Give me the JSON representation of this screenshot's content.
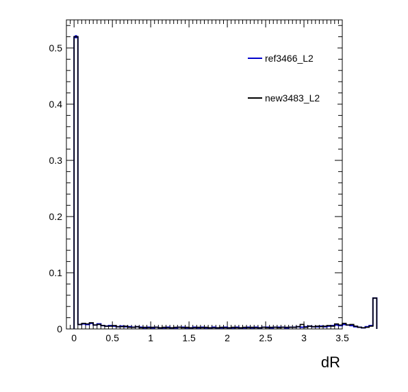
{
  "chart_data": {
    "type": "histogram-step",
    "xlabel": "dR",
    "ylabel": "",
    "xlim": [
      -0.1,
      3.5
    ],
    "ylim": [
      0,
      0.55
    ],
    "bin_width": 0.05,
    "x_ticks": [
      "0",
      "0.5",
      "1",
      "1.5",
      "2",
      "2.5",
      "3",
      "3.5"
    ],
    "y_ticks": [
      "0",
      "0.1",
      "0.2",
      "0.3",
      "0.4",
      "0.5"
    ],
    "grid": false,
    "legend_position": "top-right",
    "series": [
      {
        "name": "ref3466_L2",
        "color": "#0000cc",
        "first_bin_marker": true,
        "values": [
          0.52,
          0.008,
          0.009,
          0.008,
          0.01,
          0.007,
          0.009,
          0.006,
          0.005,
          0.006,
          0.005,
          0.004,
          0.005,
          0.004,
          0.004,
          0.003,
          0.004,
          0.003,
          0.002,
          0.003,
          0.002,
          0.003,
          0.002,
          0.002,
          0.003,
          0.002,
          0.002,
          0.003,
          0.003,
          0.002,
          0.002,
          0.003,
          0.002,
          0.003,
          0.002,
          0.002,
          0.003,
          0.002,
          0.002,
          0.003,
          0.002,
          0.002,
          0.003,
          0.002,
          0.002,
          0.003,
          0.002,
          0.003,
          0.002,
          0.003,
          0.003,
          0.002,
          0.003,
          0.003,
          0.003,
          0.002,
          0.003,
          0.003,
          0.004,
          0.003,
          0.004,
          0.005,
          0.004,
          0.004,
          0.005,
          0.004,
          0.005,
          0.006,
          0.007,
          0.006,
          0.008,
          0.007,
          0.006,
          0.004,
          0.003,
          0.002,
          0.004,
          0.006,
          0.055
        ]
      },
      {
        "name": "new3483_L2",
        "color": "#000000",
        "first_bin_marker": false,
        "values": [
          0.52,
          0.008,
          0.01,
          0.009,
          0.011,
          0.007,
          0.008,
          0.006,
          0.005,
          0.005,
          0.006,
          0.004,
          0.004,
          0.005,
          0.003,
          0.003,
          0.004,
          0.002,
          0.003,
          0.002,
          0.003,
          0.003,
          0.002,
          0.003,
          0.002,
          0.002,
          0.003,
          0.003,
          0.002,
          0.003,
          0.002,
          0.002,
          0.003,
          0.002,
          0.003,
          0.002,
          0.002,
          0.002,
          0.003,
          0.002,
          0.002,
          0.003,
          0.002,
          0.002,
          0.003,
          0.002,
          0.003,
          0.002,
          0.002,
          0.003,
          0.002,
          0.003,
          0.003,
          0.002,
          0.003,
          0.003,
          0.003,
          0.003,
          0.004,
          0.008,
          0.003,
          0.005,
          0.004,
          0.005,
          0.004,
          0.005,
          0.006,
          0.005,
          0.009,
          0.007,
          0.01,
          0.007,
          0.008,
          0.005,
          0.003,
          0.002,
          0.003,
          0.005,
          0.055
        ]
      }
    ]
  }
}
